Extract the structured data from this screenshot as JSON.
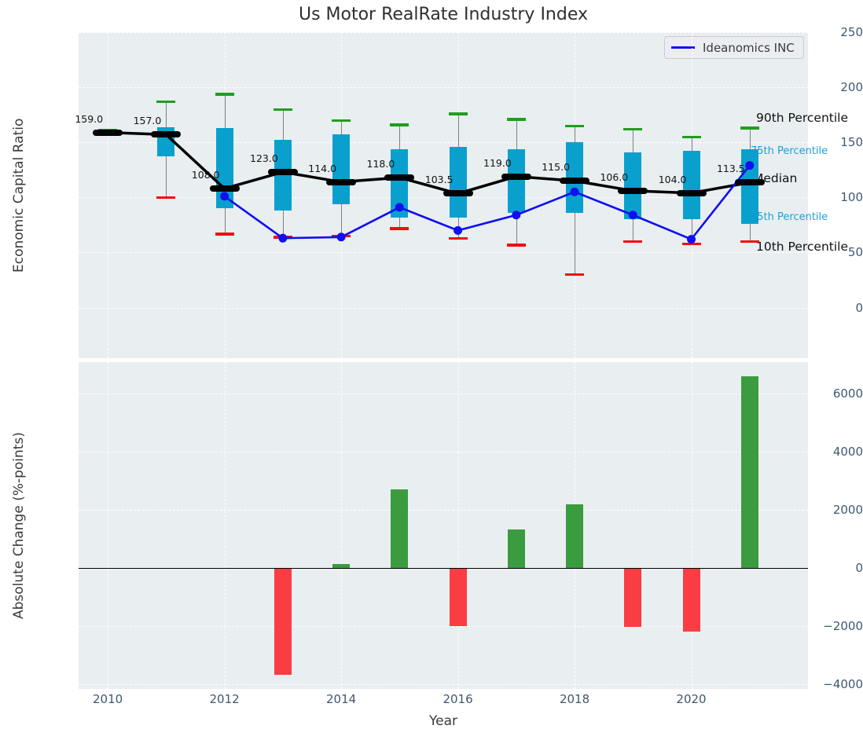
{
  "title": "Us Motor RealRate Industry Index",
  "x_axis": {
    "label": "Year",
    "tick_years": [
      2010,
      2012,
      2014,
      2016,
      2018,
      2020
    ],
    "tick_labels": [
      "2010",
      "2012",
      "2014",
      "2016",
      "2018",
      "2020"
    ]
  },
  "annotations": {
    "p90": "90th Percentile",
    "p75": "75th Percentile",
    "median": "Median",
    "p25": "25th Percentile",
    "p10": "10th Percentile"
  },
  "legend": {
    "label": "Ideanomics INC"
  },
  "colors": {
    "panel_bg": "#e9eef0",
    "grid": "#ffffff",
    "tick_text": "#3e5871",
    "axis_text": "#3a3a3a",
    "box_fill": "#0aa0ce",
    "median_line": "#000000",
    "company_line": "#0f0ff0",
    "cap_top_green": "#1f9e1f",
    "cap_bottom_red": "#f10e0e",
    "bar_positive": "#3a9c3f",
    "bar_negative": "#fa3c43",
    "annotation_cyan": "#1aa3d6"
  },
  "chart_data": [
    {
      "type": "boxplot+line",
      "title": "Us Motor RealRate Industry Index",
      "ylabel": "Economic Capital Ratio",
      "xlim": [
        2009.5,
        2022.0
      ],
      "ylim": [
        -46,
        250
      ],
      "yticks": [
        250,
        200,
        150,
        100,
        50,
        0
      ],
      "ytick_labels": [
        "250",
        "200",
        "150",
        "100",
        "50",
        "0"
      ],
      "grid": true,
      "legend_position": "upper right",
      "years": [
        2010,
        2011,
        2012,
        2013,
        2014,
        2015,
        2016,
        2017,
        2018,
        2019,
        2020,
        2021
      ],
      "series": {
        "p90": {
          "label": "90th Percentile",
          "values": [
            161,
            187,
            194,
            180,
            170,
            166,
            176,
            171,
            165,
            162,
            155,
            163
          ]
        },
        "p75": {
          "label": "75th Percentile",
          "values": [
            null,
            164,
            163,
            152,
            157,
            144,
            146,
            144,
            150,
            141,
            142,
            144
          ]
        },
        "median": {
          "label": "Median",
          "values": [
            159,
            157,
            108,
            123,
            114,
            118,
            103.5,
            119,
            115,
            106,
            104,
            113.5
          ]
        },
        "p25": {
          "label": "25th Percentile",
          "values": [
            null,
            137,
            90,
            88,
            94,
            82,
            82,
            86,
            86,
            80,
            80,
            76
          ]
        },
        "p10": {
          "label": "10th Percentile",
          "values": [
            null,
            100,
            67,
            64,
            65,
            72,
            63,
            57,
            30,
            60,
            58,
            60
          ]
        },
        "company": {
          "label": "Ideanomics INC",
          "values": [
            null,
            null,
            101,
            63,
            64,
            91,
            70,
            84,
            105,
            84,
            62,
            129
          ]
        }
      },
      "median_labels": [
        "159.0",
        "157.0",
        "108.0",
        "123.0",
        "114.0",
        "118.0",
        "103.5",
        "119.0",
        "115.0",
        "106.0",
        "104.0",
        "113.5"
      ]
    },
    {
      "type": "bar",
      "ylabel": "Absolute Change (%-points)",
      "xlabel": "Year",
      "xlim": [
        2009.5,
        2022.0
      ],
      "ylim": [
        -4163,
        7082
      ],
      "yticks": [
        6000,
        4000,
        2000,
        0,
        -2000,
        -4000
      ],
      "ytick_labels": [
        "6000",
        "4000",
        "2000",
        "0",
        "−2000",
        "−4000"
      ],
      "grid": true,
      "years": [
        2010,
        2011,
        2012,
        2013,
        2014,
        2015,
        2016,
        2017,
        2018,
        2019,
        2020,
        2021
      ],
      "values": [
        null,
        null,
        null,
        -3690,
        140,
        2700,
        -2010,
        1320,
        2200,
        -2020,
        -2200,
        6590
      ]
    }
  ]
}
